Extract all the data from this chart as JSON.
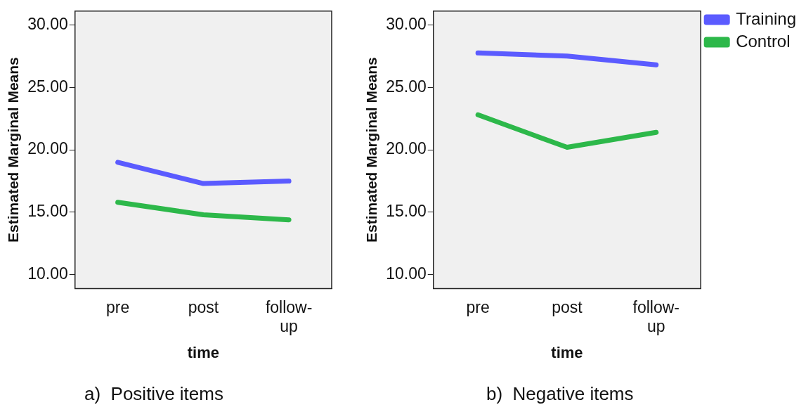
{
  "chart_data": [
    {
      "type": "line",
      "xlabel": "time",
      "ylabel": "Estimated Marginal Means",
      "categories": [
        "pre",
        "post",
        "follow-up"
      ],
      "series": [
        {
          "color": "#5b5bff",
          "values": [
            19.0,
            17.3,
            17.5
          ]
        },
        {
          "color": "#2db84a",
          "values": [
            15.8,
            14.8,
            14.4
          ]
        }
      ],
      "ylim": [
        8.9,
        31.1
      ],
      "yticks": [
        {
          "value": 10,
          "label": "10.00"
        },
        {
          "value": 15,
          "label": "15.00"
        },
        {
          "value": 20,
          "label": "20.00"
        },
        {
          "value": 25,
          "label": "25.00"
        },
        {
          "value": 30,
          "label": "30.00"
        }
      ],
      "grid": false,
      "legend": false,
      "marker": "none",
      "annotations": [
        "a)  Positive items"
      ]
    },
    {
      "type": "line",
      "xlabel": "time",
      "ylabel": "Estimated Marginal Means",
      "categories": [
        "pre",
        "post",
        "follow-up"
      ],
      "series": [
        {
          "name": "Training",
          "color": "#5b5bff",
          "values": [
            27.75,
            27.5,
            26.8
          ]
        },
        {
          "name": "Control",
          "color": "#2db84a",
          "values": [
            22.8,
            20.2,
            21.4
          ]
        }
      ],
      "ylim": [
        8.9,
        31.1
      ],
      "yticks": [
        {
          "value": 10,
          "label": "10.00"
        },
        {
          "value": 15,
          "label": "15.00"
        },
        {
          "value": 20,
          "label": "20.00"
        },
        {
          "value": 25,
          "label": "25.00"
        },
        {
          "value": 30,
          "label": "30.00"
        }
      ],
      "grid": false,
      "legend": "top right",
      "marker": "none",
      "annotations": [
        "b)  Negative items"
      ]
    }
  ]
}
